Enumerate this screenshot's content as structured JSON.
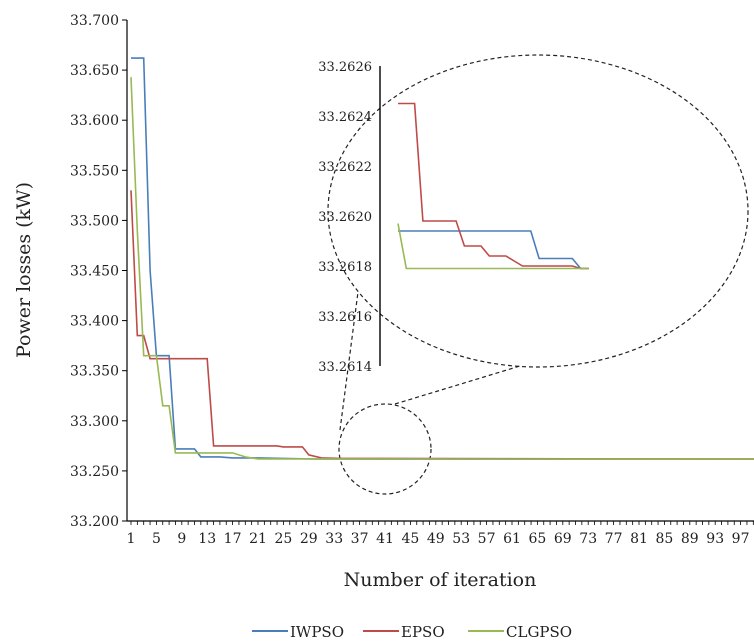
{
  "chart_data": {
    "type": "line",
    "xlabel": "Number of iteration",
    "ylabel": "Power losses (kW)",
    "ylim": [
      33.2,
      33.7
    ],
    "xlim": [
      1,
      100
    ],
    "y_ticks": [
      "33.200",
      "33.250",
      "33.300",
      "33.350",
      "33.400",
      "33.450",
      "33.500",
      "33.550",
      "33.600",
      "33.650",
      "33.700"
    ],
    "x_ticks": [
      "1",
      "5",
      "9",
      "13",
      "17",
      "21",
      "25",
      "29",
      "33",
      "37",
      "41",
      "45",
      "49",
      "53",
      "57",
      "61",
      "65",
      "69",
      "73",
      "77",
      "81",
      "85",
      "89",
      "93",
      "97"
    ],
    "legend_position": "bottom",
    "grid": false,
    "series": [
      {
        "name": "IWPSO",
        "color": "#4a7ebb",
        "points": [
          [
            1,
            33.662
          ],
          [
            3,
            33.662
          ],
          [
            4,
            33.45
          ],
          [
            5,
            33.365
          ],
          [
            7,
            33.365
          ],
          [
            8,
            33.272
          ],
          [
            11,
            33.272
          ],
          [
            12,
            33.264
          ],
          [
            15,
            33.264
          ],
          [
            17,
            33.263
          ],
          [
            21,
            33.263
          ],
          [
            30,
            33.2619
          ],
          [
            100,
            33.2618
          ]
        ]
      },
      {
        "name": "EPSO",
        "color": "#be4b48",
        "points": [
          [
            1,
            33.53
          ],
          [
            2,
            33.385
          ],
          [
            3,
            33.385
          ],
          [
            4,
            33.362
          ],
          [
            13,
            33.362
          ],
          [
            14,
            33.275
          ],
          [
            24,
            33.275
          ],
          [
            25,
            33.274
          ],
          [
            28,
            33.274
          ],
          [
            29,
            33.266
          ],
          [
            31,
            33.263
          ],
          [
            34,
            33.2625
          ],
          [
            100,
            33.2618
          ]
        ]
      },
      {
        "name": "CLGPSO",
        "color": "#98b954",
        "points": [
          [
            1,
            33.643
          ],
          [
            2,
            33.49
          ],
          [
            3,
            33.365
          ],
          [
            5,
            33.365
          ],
          [
            6,
            33.315
          ],
          [
            7,
            33.315
          ],
          [
            8,
            33.268
          ],
          [
            17,
            33.268
          ],
          [
            19,
            33.264
          ],
          [
            21,
            33.262
          ],
          [
            100,
            33.2618
          ]
        ]
      }
    ],
    "inset": {
      "ylim": [
        33.2614,
        33.2626
      ],
      "y_ticks": [
        "33.2614",
        "33.2616",
        "33.2618",
        "33.2620",
        "33.2622",
        "33.2624",
        "33.2626"
      ],
      "series": [
        {
          "name": "IWPSO",
          "values": [
            33.26194,
            33.26194,
            33.26194,
            33.26194,
            33.26194,
            33.26194,
            33.26194,
            33.26194,
            33.26194,
            33.26194,
            33.26194,
            33.26194,
            33.26194,
            33.26194,
            33.26194,
            33.26194,
            33.26194,
            33.26183,
            33.26183,
            33.26183,
            33.26183,
            33.26183,
            33.26179,
            33.26179
          ]
        },
        {
          "name": "EPSO",
          "values": [
            33.26245,
            33.26245,
            33.26245,
            33.26198,
            33.26198,
            33.26198,
            33.26198,
            33.26198,
            33.26188,
            33.26188,
            33.26188,
            33.26184,
            33.26184,
            33.26184,
            33.26182,
            33.2618,
            33.2618,
            33.2618,
            33.2618,
            33.2618,
            33.2618,
            33.2618,
            33.26179,
            33.26179
          ]
        },
        {
          "name": "CLGPSO",
          "values": [
            33.26197,
            33.26179,
            33.26179,
            33.26179,
            33.26179,
            33.26179,
            33.26179,
            33.26179,
            33.26179,
            33.26179,
            33.26179,
            33.26179,
            33.26179,
            33.26179,
            33.26179,
            33.26179,
            33.26179,
            33.26179,
            33.26179,
            33.26179,
            33.26179,
            33.26179,
            33.26179,
            33.26179
          ]
        }
      ]
    }
  }
}
